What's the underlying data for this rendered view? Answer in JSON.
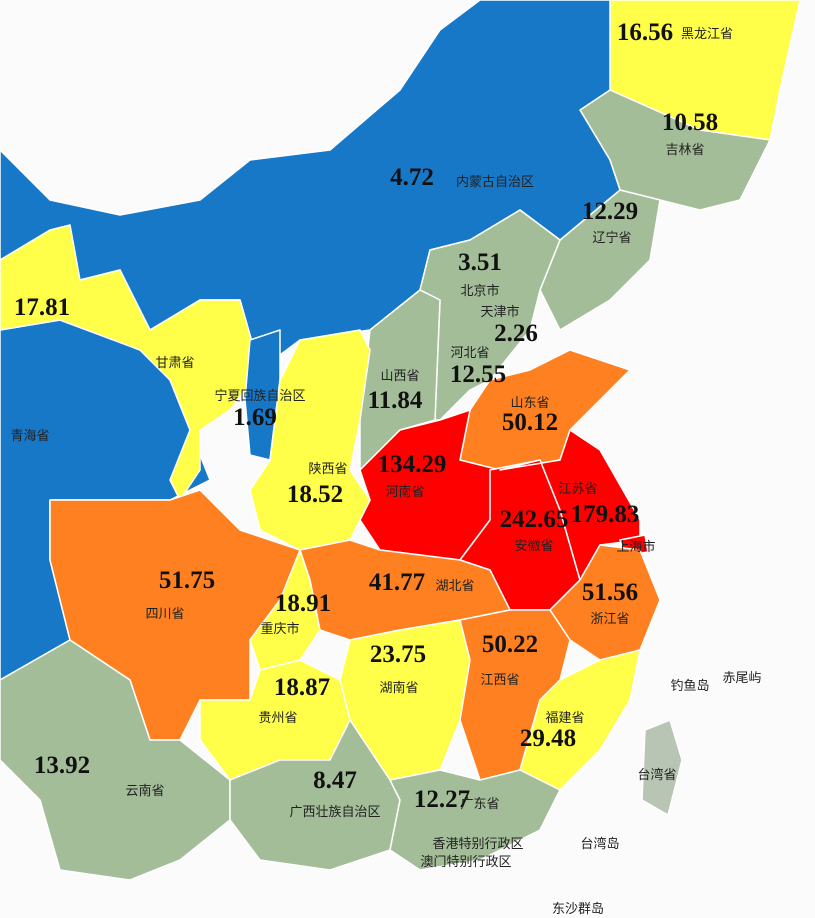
{
  "regions": [
    {
      "name": "黑龙江省",
      "value": "16.56",
      "color": "#ffff4a"
    },
    {
      "name": "吉林省",
      "value": "10.58",
      "color": "#a2bd98"
    },
    {
      "name": "辽宁省",
      "value": "12.29",
      "color": "#a2bd98"
    },
    {
      "name": "内蒙古自治区",
      "value": "4.72",
      "color": "#1878c8"
    },
    {
      "name": "北京市",
      "value": "3.51",
      "color": "#1878c8"
    },
    {
      "name": "天津市",
      "value": "2.26",
      "color": "#1878c8"
    },
    {
      "name": "河北省",
      "value": "12.55",
      "color": "#a2bd98"
    },
    {
      "name": "山西省",
      "value": "11.84",
      "color": "#a2bd98"
    },
    {
      "name": "山东省",
      "value": "50.12",
      "color": "#ff8020"
    },
    {
      "name": "河南省",
      "value": "134.29",
      "color": "#ff0000"
    },
    {
      "name": "安徽省",
      "value": "242.65",
      "color": "#ff0000"
    },
    {
      "name": "江苏省",
      "value": "179.83",
      "color": "#ff0000"
    },
    {
      "name": "上海市",
      "color": "#ff0000"
    },
    {
      "name": "甘肃省",
      "value": "17.81",
      "color": "#ffff4a"
    },
    {
      "name": "宁夏回族自治区",
      "value": "1.69",
      "color": "#1878c8"
    },
    {
      "name": "青海省",
      "color": "#1878c8"
    },
    {
      "name": "陕西省",
      "value": "18.52",
      "color": "#ffff4a"
    },
    {
      "name": "四川省",
      "value": "51.75",
      "color": "#ff8020"
    },
    {
      "name": "重庆市",
      "value": "18.91",
      "color": "#ffff4a"
    },
    {
      "name": "湖北省",
      "value": "41.77",
      "color": "#ff8020"
    },
    {
      "name": "浙江省",
      "value": "51.56",
      "color": "#ff8020"
    },
    {
      "name": "湖南省",
      "value": "23.75",
      "color": "#ffff4a"
    },
    {
      "name": "江西省",
      "value": "50.22",
      "color": "#ff8020"
    },
    {
      "name": "贵州省",
      "value": "18.87",
      "color": "#ffff4a"
    },
    {
      "name": "福建省",
      "value": "29.48",
      "color": "#ffff4a"
    },
    {
      "name": "云南省",
      "value": "13.92",
      "color": "#a2bd98"
    },
    {
      "name": "广西壮族自治区",
      "value": "8.47",
      "color": "#a2bd98"
    },
    {
      "name": "广东省",
      "value": "12.27",
      "color": "#a2bd98"
    },
    {
      "name": "台湾省",
      "color": "#b8c4b4"
    }
  ],
  "labels": [
    "香港特别行政区",
    "澳门特别行政区",
    "台湾岛",
    "钓鱼岛",
    "赤尾屿",
    "东沙群岛"
  ]
}
